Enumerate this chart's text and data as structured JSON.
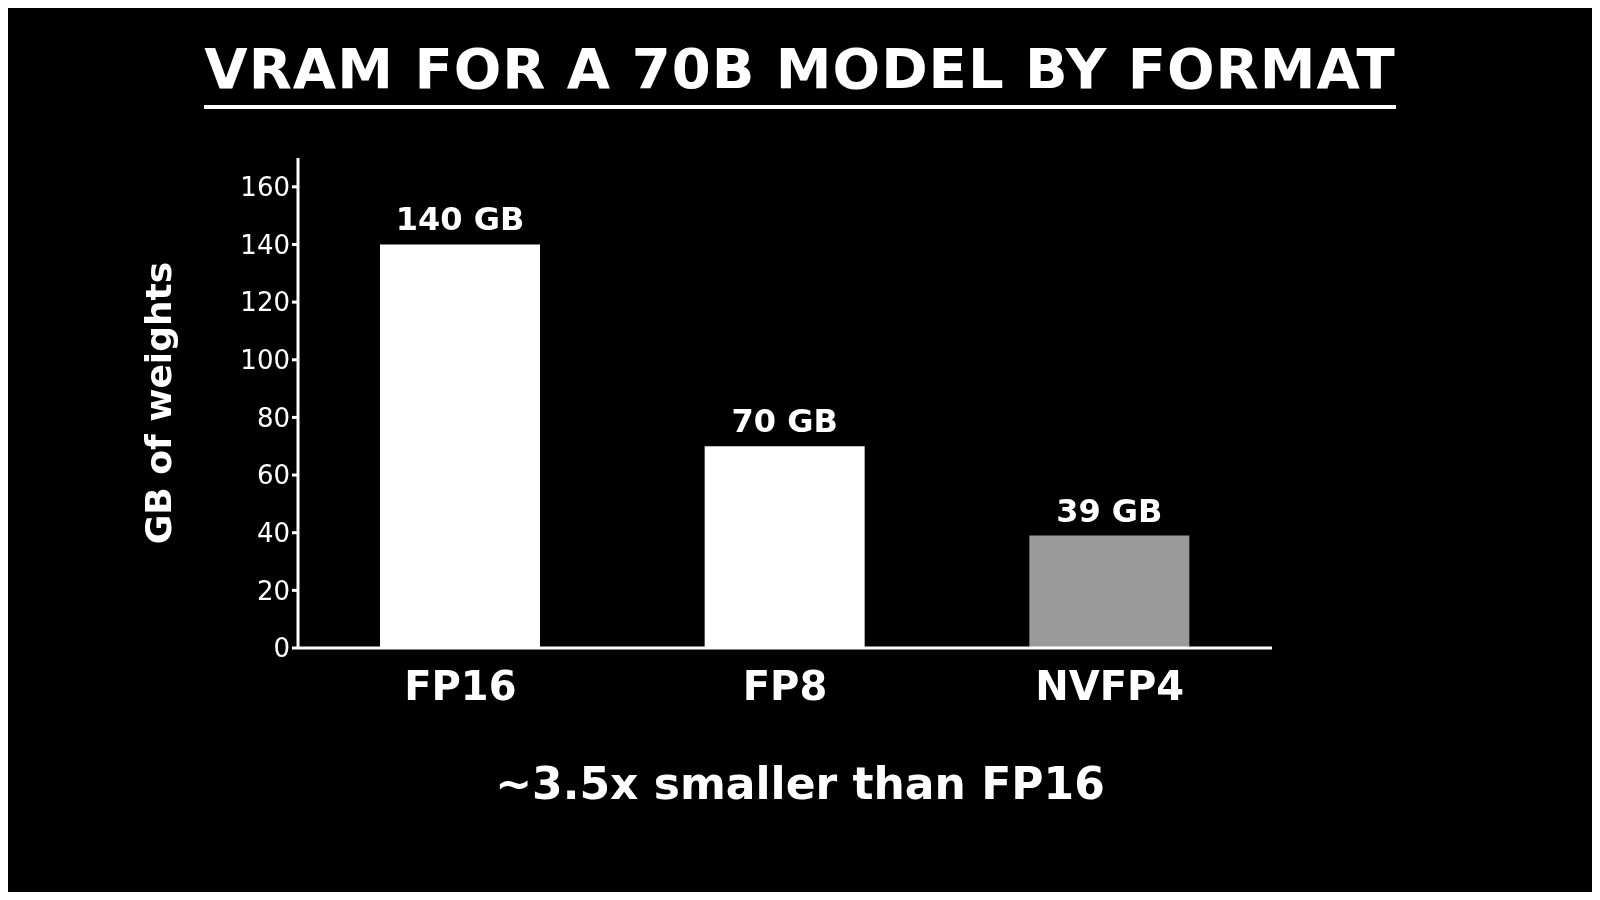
{
  "chart_data": {
    "type": "bar",
    "title": "VRAM FOR A 70B MODEL BY FORMAT",
    "ylabel": "GB of weights",
    "categories": [
      "FP16",
      "FP8",
      "NVFP4"
    ],
    "values": [
      140,
      70,
      39
    ],
    "colors": [
      "#ffffff",
      "#ffffff",
      "#9a9a9a"
    ],
    "value_labels": [
      "140 GB",
      "70 GB",
      "39 GB"
    ],
    "ylim": [
      0,
      170
    ],
    "yticks": [
      0,
      20,
      40,
      60,
      80,
      100,
      120,
      140,
      160
    ],
    "grid": false,
    "legend": false,
    "annotations": [
      "~3.5x smaller than FP16"
    ]
  }
}
